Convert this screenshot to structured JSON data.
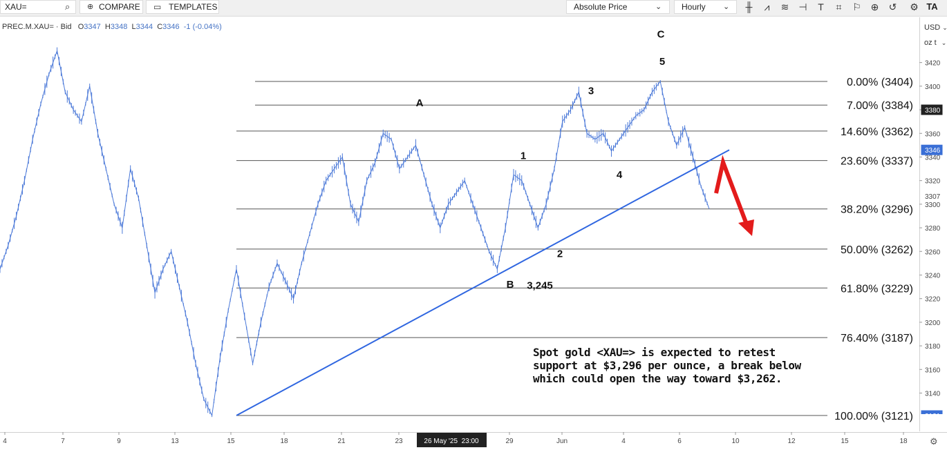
{
  "toolbar": {
    "symbol": "XAU=",
    "compare_label": "COMPARE",
    "templates_label": "TEMPLATES",
    "price_mode": "Absolute Price",
    "interval": "Hourly",
    "logo": "TA",
    "icons": [
      "candlestick-icon",
      "chart-style-icon",
      "indicator-icon",
      "drawing-tool-icon",
      "text-tool-icon",
      "shape-icon",
      "annotation-icon",
      "zoom-icon",
      "reset-zoom-icon",
      "settings-icon"
    ]
  },
  "legend": {
    "instrument": "PREC.M.XAU= · Bid",
    "open_label": "O",
    "open": "3347",
    "high_label": "H",
    "high": "3348",
    "low_label": "L",
    "low": "3344",
    "close_label": "C",
    "close": "3346",
    "change": "-1 (-0.04%)"
  },
  "axis": {
    "currency": "USD",
    "unit": "oz t",
    "y_ticks": [
      3420,
      3400,
      3380,
      3360,
      3340,
      3320,
      3300,
      3280,
      3260,
      3240,
      3220,
      3200,
      3180,
      3160,
      3140
    ],
    "badges": [
      {
        "value": "3380",
        "color": "#222222"
      },
      {
        "value": "3346",
        "color": "#3a6fd6"
      },
      {
        "value": "3307",
        "color": "#ffffff"
      },
      {
        "value": "3121",
        "color": "#3a6fd6"
      }
    ],
    "x_ticks": [
      "4",
      "7",
      "9",
      "13",
      "15",
      "18",
      "21",
      "23",
      "29",
      "Jun",
      "4",
      "6",
      "10",
      "12",
      "15",
      "18"
    ],
    "crosshair_label": "26 May '25  23:00"
  },
  "chart_data": {
    "type": "line",
    "series": [
      {
        "values": [
          3245,
          3265,
          3290,
          3320,
          3355,
          3385,
          3410,
          3430,
          3395,
          3380,
          3370,
          3400,
          3360,
          3330,
          3300,
          3280,
          3330,
          3305,
          3265,
          3225,
          3245,
          3260,
          3230,
          3200,
          3165,
          3135,
          3121,
          3170,
          3210,
          3245,
          3205,
          3165,
          3200,
          3230,
          3250,
          3235,
          3220,
          3250,
          3275,
          3300,
          3320,
          3330,
          3340,
          3300,
          3285,
          3320,
          3335,
          3360,
          3355,
          3330,
          3340,
          3350,
          3325,
          3300,
          3280,
          3300,
          3310,
          3320,
          3300,
          3280,
          3260,
          3245,
          3280,
          3325,
          3320,
          3300,
          3280,
          3300,
          3330,
          3370,
          3380,
          3395,
          3360,
          3355,
          3360,
          3345,
          3355,
          3365,
          3375,
          3380,
          3395,
          3404,
          3370,
          3350,
          3365,
          3340,
          3315,
          3296
        ]
      }
    ],
    "ylim": [
      3120,
      3435
    ],
    "fib_levels": [
      {
        "label": "0.00% (3404)",
        "value": 3404
      },
      {
        "label": "7.00% (3384)",
        "value": 3384
      },
      {
        "label": "14.60% (3362)",
        "value": 3362
      },
      {
        "label": "23.60% (3337)",
        "value": 3337
      },
      {
        "label": "38.20% (3296)",
        "value": 3296
      },
      {
        "label": "50.00% (3262)",
        "value": 3262
      },
      {
        "label": "61.80% (3229)",
        "value": 3229
      },
      {
        "label": "76.40% (3187)",
        "value": 3187
      },
      {
        "label": "100.00% (3121)",
        "value": 3121
      }
    ],
    "wave_labels": [
      "A",
      "B",
      "C",
      "1",
      "2",
      "3",
      "4",
      "5"
    ],
    "low_label": "3,245",
    "annotation": [
      "Spot gold <XAU=> is expected to retest",
      "support at $3,296 per ounce, a break below",
      "which could open the way toward $3,262."
    ],
    "line_color": "#4a78d8",
    "trendline_color": "#2f66e0",
    "arrow_color": "#e31b1b"
  }
}
